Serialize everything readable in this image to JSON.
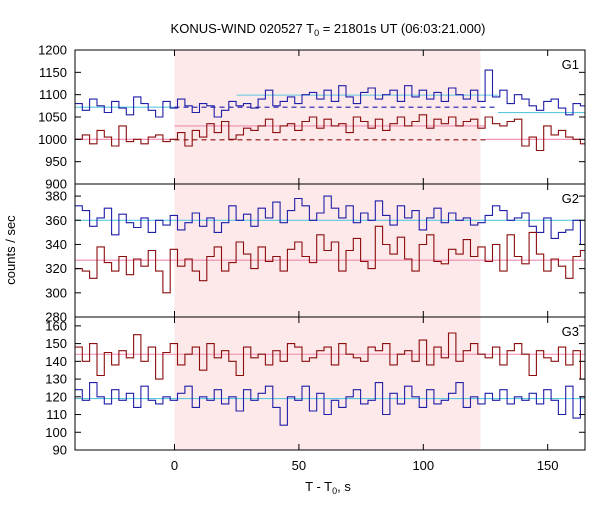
{
  "title_main": "KONUS-WIND 020527 T",
  "title_sub": "0",
  "title_rest": " = 21801s UT (06:03:21.000)",
  "xlabel_main": "T - T",
  "xlabel_sub": "0",
  "xlabel_rest": ", s",
  "ylabel": "counts / sec",
  "chart_data": {
    "type": "line",
    "title": "KONUS-WIND 020527 T0 = 21801s UT (06:03:21.000)",
    "xlabel": "T - T0, s",
    "ylabel": "counts / sec",
    "xlim": [
      -40,
      165
    ],
    "x_ticks": [
      0,
      50,
      100,
      150
    ],
    "highlight_interval": [
      0,
      123
    ],
    "bin_width": 2.944,
    "bin_start": -40,
    "grid": false,
    "panels": [
      {
        "label": "G1",
        "ylim": [
          900,
          1200
        ],
        "y_ticks": [
          900,
          950,
          1000,
          1050,
          1100,
          1150,
          1200
        ],
        "series": [
          {
            "color": "#1f1fa8",
            "values": [
              1080,
              1065,
              1090,
              1075,
              1060,
              1085,
              1070,
              1055,
              1095,
              1080,
              1065,
              1050,
              1085,
              1070,
              1090,
              1075,
              1060,
              1080,
              1075,
              1050,
              1065,
              1085,
              1075,
              1080,
              1070,
              1090,
              1110,
              1075,
              1085,
              1095,
              1080,
              1100,
              1105,
              1090,
              1110,
              1085,
              1120,
              1095,
              1080,
              1105,
              1115,
              1090,
              1100,
              1110,
              1085,
              1120,
              1095,
              1110,
              1090,
              1105,
              1085,
              1115,
              1100,
              1090,
              1110,
              1085,
              1155,
              1095,
              1110,
              1080,
              1100,
              1090,
              1075,
              1065,
              1085,
              1090,
              1070,
              1055,
              1080,
              1075,
              1065,
              1085,
              1060,
              1075,
              1090
            ],
            "level_segments": [
              {
                "x0": -40,
                "x1": 0,
                "y": 1072,
                "color": "#5ec8e0",
                "dash": false
              },
              {
                "x0": 0,
                "x1": 130,
                "y": 1072,
                "color": "#1f1fa8",
                "dash": true
              },
              {
                "x0": 130,
                "x1": 165,
                "y": 1060,
                "color": "#5ec8e0",
                "dash": false
              },
              {
                "x0": 25,
                "x1": 130,
                "y": 1099,
                "color": "#5ec8e0",
                "dash": false
              }
            ]
          },
          {
            "color": "#8b0d0d",
            "values": [
              1000,
              1010,
              990,
              1020,
              1005,
              985,
              1030,
              995,
              1000,
              990,
              1005,
              1010,
              995,
              1000,
              1015,
              985,
              1020,
              1005,
              1035,
              1015,
              1040,
              1000,
              1010,
              1025,
              1020,
              1030,
              1045,
              1015,
              1030,
              1035,
              1020,
              1040,
              1050,
              1025,
              1045,
              1030,
              1035,
              1015,
              1050,
              1040,
              1025,
              1045,
              1020,
              1035,
              1050,
              1030,
              1040,
              1055,
              1025,
              1045,
              1035,
              1050,
              1030,
              1040,
              1045,
              1025,
              1050,
              1035,
              1030,
              1040,
              1045,
              985,
              1005,
              975,
              1030,
              1010,
              1020,
              1005,
              1000,
              990,
              1005,
              985,
              975,
              1000,
              990
            ],
            "level_segments": [
              {
                "x0": -40,
                "x1": 0,
                "y": 1000,
                "color": "#f08ab0",
                "dash": false
              },
              {
                "x0": 0,
                "x1": 125,
                "y": 999,
                "color": "#8b0d0d",
                "dash": true
              },
              {
                "x0": 125,
                "x1": 165,
                "y": 1000,
                "color": "#f08ab0",
                "dash": false
              },
              {
                "x0": 0,
                "x1": 125,
                "y": 1030,
                "color": "#f08ab0",
                "dash": false
              }
            ]
          }
        ]
      },
      {
        "label": "G2",
        "ylim": [
          280,
          390
        ],
        "y_ticks": [
          280,
          300,
          320,
          340,
          360,
          380
        ],
        "series": [
          {
            "color": "#1f1fa8",
            "values": [
              372,
              368,
              355,
              362,
              370,
              348,
              365,
              358,
              354,
              362,
              350,
              360,
              356,
              364,
              352,
              358,
              366,
              355,
              362,
              350,
              358,
              372,
              360,
              365,
              355,
              370,
              362,
              375,
              358,
              368,
              378,
              372,
              360,
              366,
              380,
              370,
              362,
              372,
              358,
              366,
              360,
              376,
              364,
              356,
              372,
              362,
              368,
              352,
              362,
              370,
              358,
              366,
              360,
              362,
              356,
              358,
              364,
              372,
              368,
              360,
              362,
              366,
              355,
              350,
              362,
              345,
              350,
              352,
              360,
              340,
              362,
              355,
              348,
              365,
              360
            ],
            "level_segments": [
              {
                "x0": -40,
                "x1": 165,
                "y": 360,
                "color": "#5ec8e0",
                "dash": false
              }
            ]
          },
          {
            "color": "#8b0d0d",
            "values": [
              320,
              318,
              312,
              338,
              325,
              318,
              330,
              315,
              328,
              322,
              335,
              318,
              300,
              336,
              322,
              328,
              318,
              310,
              330,
              338,
              318,
              325,
              342,
              332,
              320,
              338,
              326,
              330,
              318,
              336,
              342,
              330,
              325,
              348,
              335,
              342,
              318,
              335,
              345,
              326,
              320,
              355,
              340,
              332,
              346,
              328,
              318,
              340,
              348,
              326,
              324,
              336,
              332,
              344,
              330,
              338,
              326,
              340,
              318,
              348,
              330,
              324,
              350,
              332,
              318,
              328,
              322,
              312,
              330,
              335,
              318,
              305,
              300,
              310,
              320
            ],
            "level_segments": [
              {
                "x0": -40,
                "x1": 165,
                "y": 327,
                "color": "#f08ab0",
                "dash": false
              }
            ]
          }
        ]
      },
      {
        "label": "G3",
        "ylim": [
          90,
          165
        ],
        "y_ticks": [
          90,
          100,
          110,
          120,
          130,
          140,
          150,
          160
        ],
        "series": [
          {
            "color": "#8b0d0d",
            "values": [
              148,
              140,
              150,
              132,
              145,
              138,
              146,
              142,
              155,
              140,
              148,
              130,
              145,
              150,
              138,
              144,
              148,
              135,
              150,
              142,
              146,
              140,
              132,
              148,
              142,
              144,
              138,
              146,
              140,
              150,
              148,
              140,
              142,
              146,
              148,
              138,
              150,
              144,
              142,
              140,
              148,
              146,
              150,
              138,
              144,
              146,
              140,
              152,
              138,
              148,
              142,
              156,
              140,
              146,
              150,
              144,
              142,
              148,
              138,
              146,
              150,
              144,
              132,
              146,
              142,
              140,
              148,
              138,
              146,
              130,
              142,
              138,
              148,
              132,
              140
            ],
            "level_segments": [
              {
                "x0": -40,
                "x1": 165,
                "y": 144,
                "color": "#f08ab0",
                "dash": false
              }
            ]
          },
          {
            "color": "#1f1fa8",
            "values": [
              124,
              118,
              128,
              120,
              116,
              124,
              118,
              122,
              114,
              126,
              118,
              116,
              120,
              118,
              122,
              126,
              114,
              120,
              118,
              124,
              116,
              120,
              112,
              124,
              118,
              122,
              126,
              114,
              104,
              120,
              118,
              126,
              112,
              122,
              110,
              118,
              114,
              120,
              124,
              116,
              118,
              128,
              110,
              122,
              116,
              126,
              120,
              114,
              124,
              116,
              118,
              122,
              128,
              114,
              120,
              116,
              122,
              118,
              124,
              116,
              120,
              118,
              122,
              116,
              124,
              118,
              110,
              126,
              108,
              120,
              124,
              118,
              116,
              120,
              122
            ],
            "level_segments": [
              {
                "x0": -40,
                "x1": 165,
                "y": 119,
                "color": "#5ec8e0",
                "dash": false
              }
            ]
          }
        ]
      }
    ]
  }
}
